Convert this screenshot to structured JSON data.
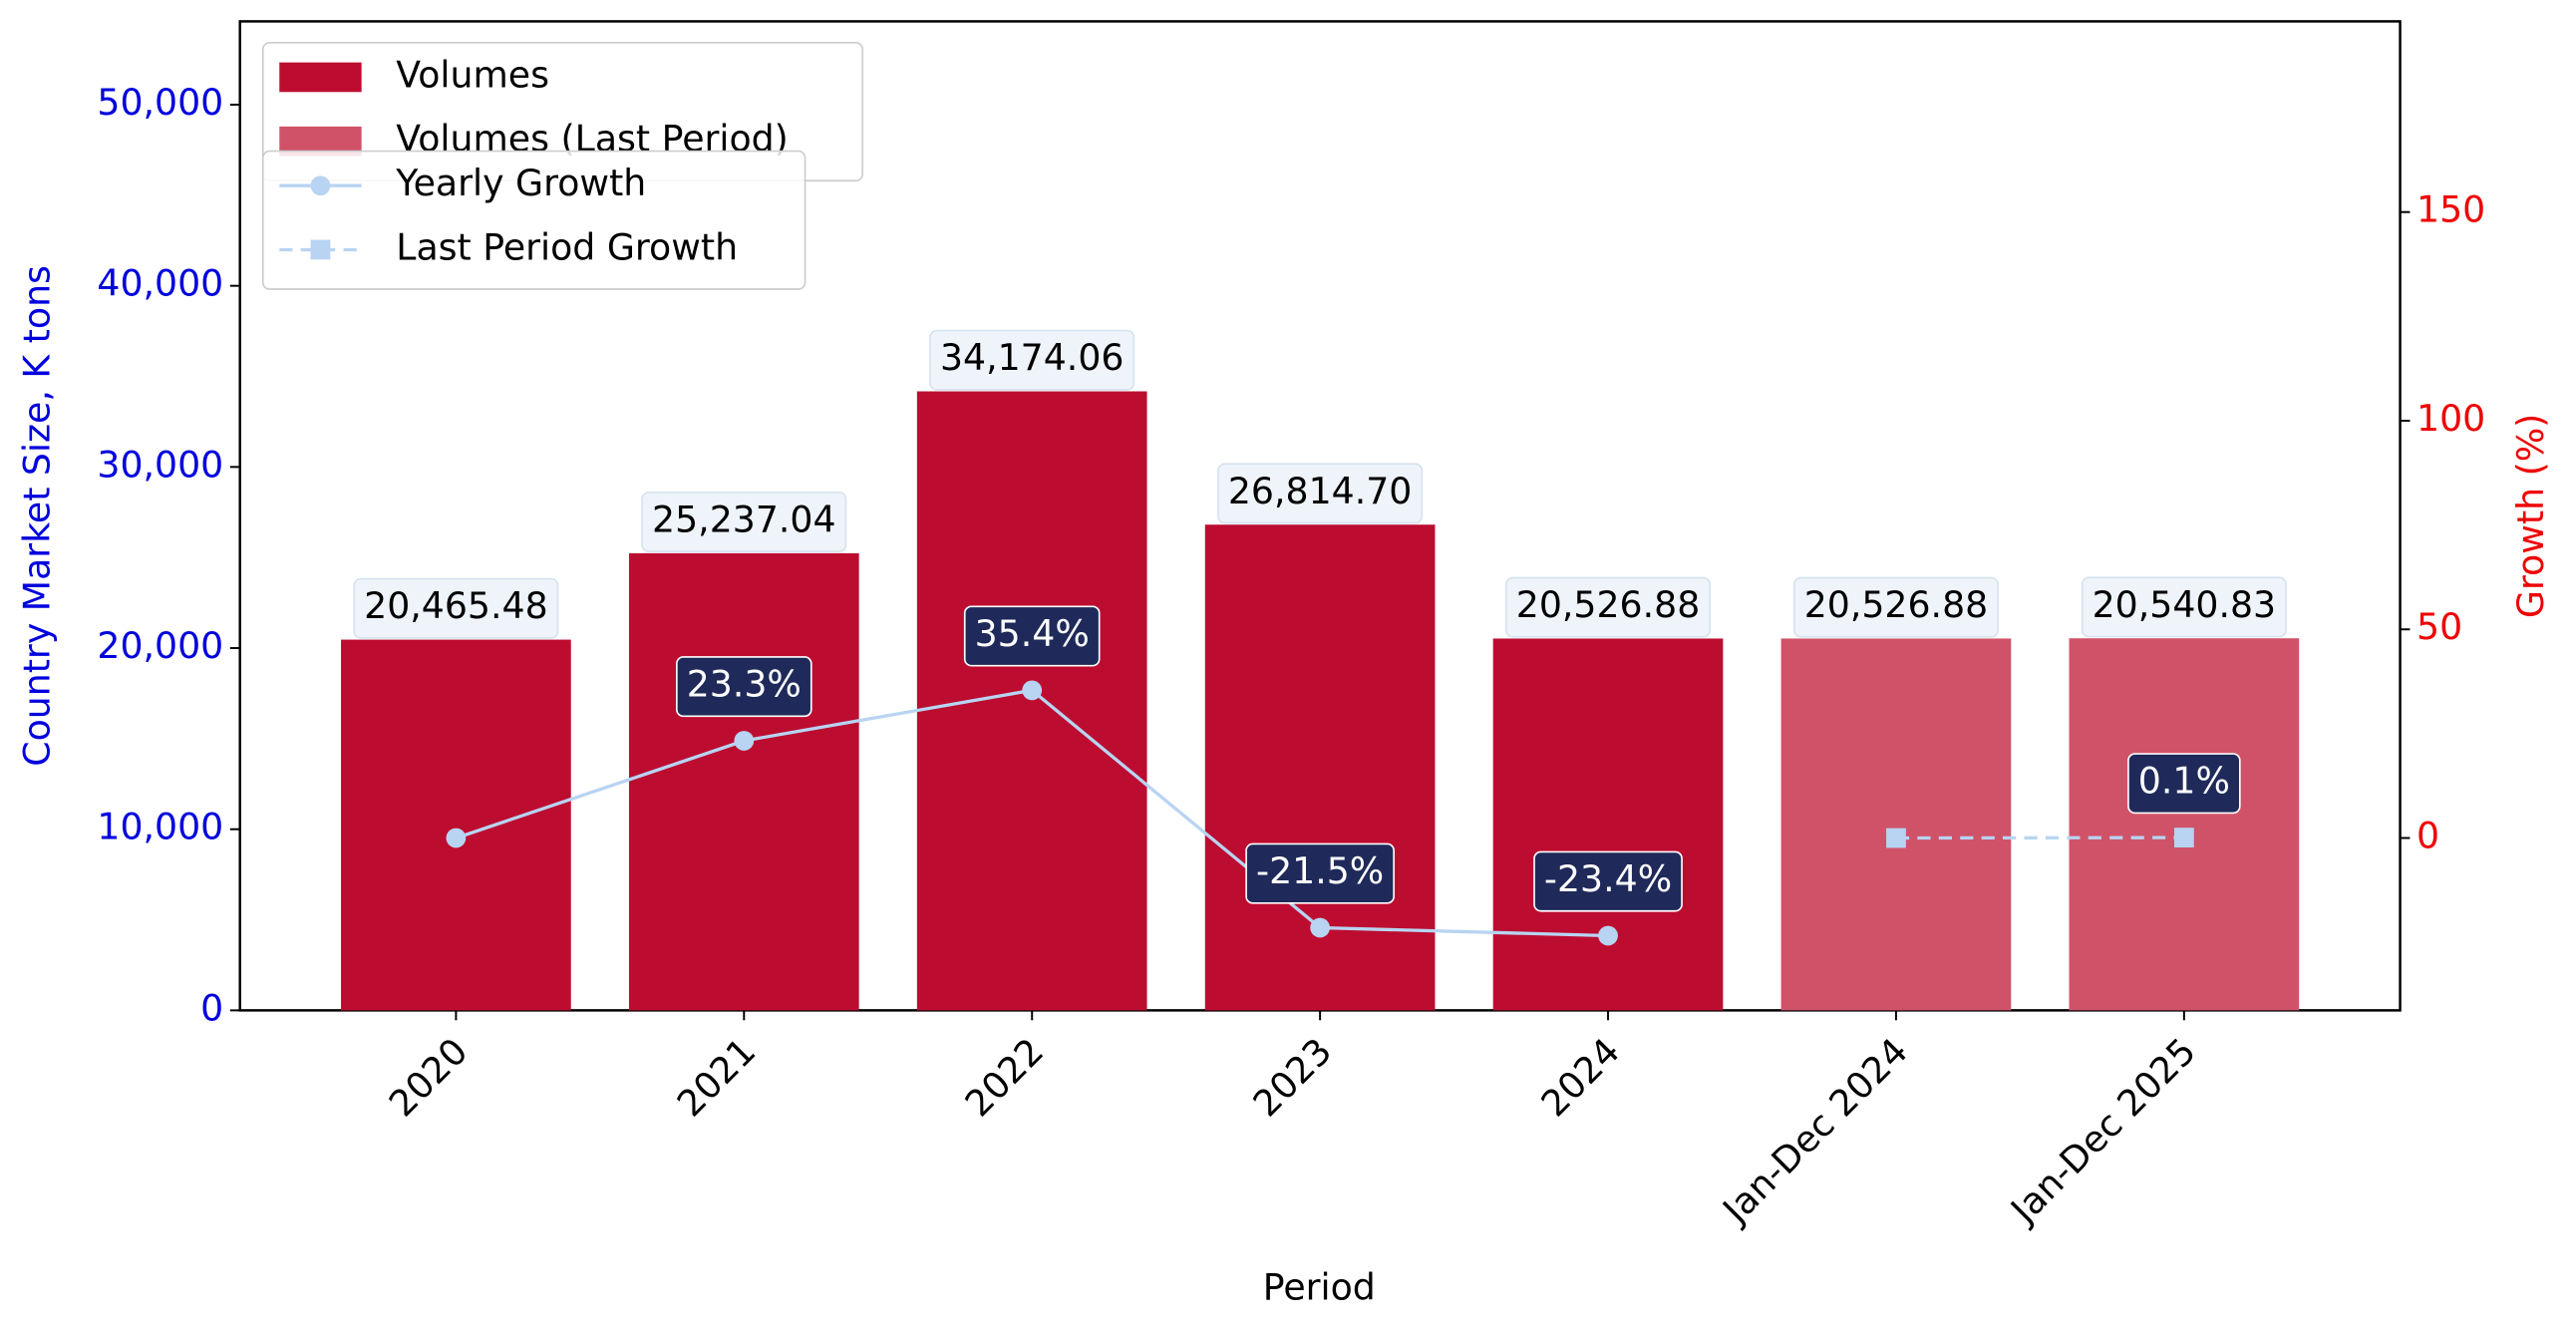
{
  "chart_data": {
    "type": "bar_line",
    "x_label": "Period",
    "y_label": "Country Market Size, K tons",
    "y2_label": "Growth (%)",
    "categories": [
      "2020",
      "2021",
      "2022",
      "2023",
      "2024",
      "Jan-Dec 2024",
      "Jan-Dec 2025"
    ],
    "series": [
      {
        "name": "Volumes",
        "type": "bar",
        "color": "#bc0d31",
        "values": [
          20465.48,
          25237.04,
          34174.06,
          26814.7,
          20526.88,
          null,
          null
        ],
        "value_labels": [
          "20,465.48",
          "25,237.04",
          "34,174.06",
          "26,814.70",
          "20,526.88",
          null,
          null
        ]
      },
      {
        "name": "Volumes (Last Period)",
        "type": "bar",
        "color": "#d05269",
        "values": [
          null,
          null,
          null,
          null,
          null,
          20526.88,
          20540.83
        ],
        "value_labels": [
          null,
          null,
          null,
          null,
          null,
          "20,526.88",
          "20,540.83"
        ]
      },
      {
        "name": "Yearly Growth",
        "type": "line",
        "axis": "y2",
        "color": "#b8d4f2",
        "marker": "circle",
        "dash": false,
        "values": [
          0,
          23.3,
          35.4,
          -21.5,
          -23.4,
          null,
          null
        ],
        "value_labels": [
          null,
          "23.3%",
          "35.4%",
          "-21.5%",
          "-23.4%",
          null,
          null
        ]
      },
      {
        "name": "Last Period Growth",
        "type": "line",
        "axis": "y2",
        "color": "#b8d4f2",
        "marker": "square",
        "dash": true,
        "values": [
          null,
          null,
          null,
          null,
          null,
          0,
          0.1
        ],
        "value_labels": [
          null,
          null,
          null,
          null,
          null,
          null,
          "0.1%"
        ]
      }
    ],
    "ylim": [
      0,
      54600
    ],
    "yticks": [
      0,
      {
        "value": 10000,
        "label": "10,000"
      },
      {
        "value": 20000,
        "label": "20,000"
      },
      {
        "value": 30000,
        "label": "30,000"
      },
      {
        "value": 40000,
        "label": "40,000"
      },
      {
        "value": 50000,
        "label": "50,000"
      }
    ],
    "y2lim": [
      -41.3,
      195.7
    ],
    "y2ticks": [
      0,
      50,
      100,
      150
    ],
    "y_color": "#0000dd",
    "y2_color": "#ee0000",
    "legend": "upper left"
  }
}
